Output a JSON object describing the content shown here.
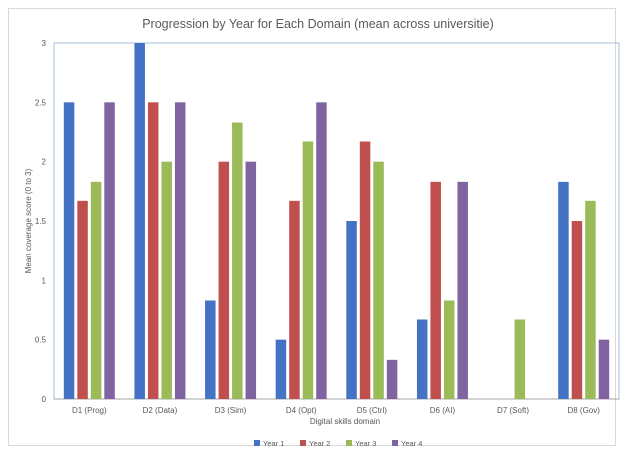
{
  "chart_data": {
    "type": "bar",
    "title": "Progression by Year for Each Domain (mean across universitie)",
    "xlabel": "Digital skills domain",
    "ylabel": "Mean coverage score (0 to 3)",
    "ylim": [
      0,
      3
    ],
    "yticks": [
      "0",
      "0.5",
      "1",
      "1.5",
      "2",
      "2.5",
      "3"
    ],
    "ytick_values": [
      0,
      0.5,
      1,
      1.5,
      2,
      2.5,
      3
    ],
    "grid": false,
    "legend_position": "bottom",
    "categories": [
      "D1 (Prog)",
      "D2 (Data)",
      "D3 (Sim)",
      "D4 (Opt)",
      "D5 (Ctrl)",
      "D6 (AI)",
      "D7 (Soft)",
      "D8 (Gov)"
    ],
    "series": [
      {
        "name": "Year 1",
        "color": "#4472c4",
        "values": [
          2.5,
          3,
          0.83,
          0.5,
          1.5,
          0.67,
          0,
          1.83
        ]
      },
      {
        "name": "Year 2",
        "color": "#c0504d",
        "values": [
          1.67,
          2.5,
          2,
          1.67,
          2.17,
          1.83,
          0,
          1.5
        ]
      },
      {
        "name": "Year 3",
        "color": "#9bbb59",
        "values": [
          1.83,
          2,
          2.33,
          2.17,
          2,
          0.83,
          0.67,
          1.67
        ]
      },
      {
        "name": "Year 4",
        "color": "#8064a2",
        "values": [
          2.5,
          2.5,
          2,
          2.5,
          0.33,
          1.83,
          0,
          0.5
        ]
      }
    ]
  }
}
